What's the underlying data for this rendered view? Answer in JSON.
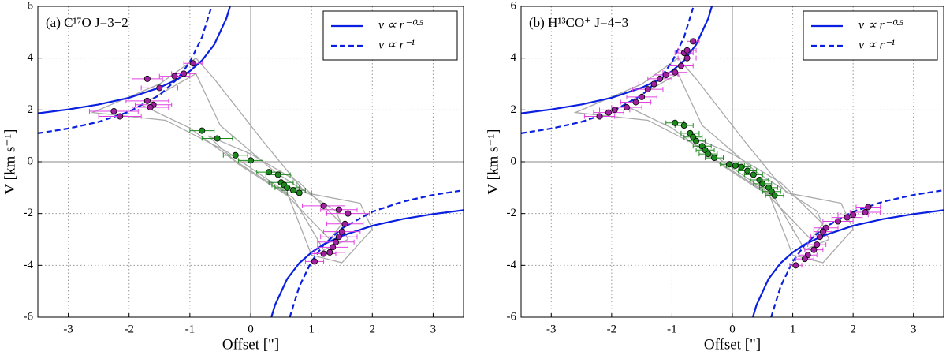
{
  "chart_data": [
    {
      "type": "scatter",
      "title": "(a) C¹⁷O J=3−2",
      "xlabel": "Offset [\"]",
      "ylabel": "V [km s⁻¹]",
      "xlim": [
        -3.5,
        3.5
      ],
      "xticks": [
        -3,
        -2,
        -1,
        0,
        1,
        2,
        3
      ],
      "ylim": [
        -6,
        6
      ],
      "yticks": [
        -6,
        -4,
        -2,
        0,
        2,
        4,
        6
      ],
      "grid": true,
      "legend": "upper right",
      "lines": [
        {
          "name": "v ∝ r⁻⁰·⁵",
          "color": "#0a1fe0",
          "dash": false,
          "x": [
            -3.5,
            -3,
            -2.5,
            -2,
            -1.5,
            -1.2,
            -1,
            -0.8,
            -0.6,
            -0.4,
            -0.34,
            0,
            0.34,
            0.4,
            0.6,
            0.8,
            1,
            1.2,
            1.5,
            2,
            2.5,
            3,
            3.5
          ],
          "values": [
            1.87,
            2.02,
            2.21,
            2.47,
            2.86,
            3.19,
            3.5,
            3.91,
            4.52,
            5.53,
            6.0,
            null,
            -6.0,
            -5.53,
            -4.52,
            -3.91,
            -3.5,
            -3.19,
            -2.86,
            -2.47,
            -2.21,
            -2.02,
            -1.87
          ]
        },
        {
          "name": "v ∝ r⁻¹",
          "color": "#0a1fe0",
          "dash": true,
          "x": [
            -3.5,
            -3,
            -2.5,
            -2,
            -1.5,
            -1.2,
            -1,
            -0.8,
            -0.64,
            0,
            0.64,
            0.8,
            1,
            1.2,
            1.5,
            2,
            2.5,
            3,
            3.5
          ],
          "values": [
            1.1,
            1.28,
            1.54,
            1.93,
            2.57,
            3.21,
            3.85,
            4.81,
            6.02,
            null,
            -6.02,
            -4.81,
            -3.85,
            -3.21,
            -2.57,
            -1.93,
            -1.54,
            -1.28,
            -1.1
          ]
        }
      ],
      "points": [
        {
          "color": "#a020a0",
          "bar_color": "#e040e0",
          "x": [
            -0.95,
            -1.1,
            -1.25,
            -1.5,
            -1.7,
            -1.7,
            -1.6,
            -1.65,
            -2.25,
            -2.15,
            1.2,
            1.45,
            1.6,
            1.55,
            1.5,
            1.45,
            1.4,
            1.35,
            1.3,
            1.2,
            1.05
          ],
          "values": [
            3.8,
            3.4,
            3.3,
            2.85,
            3.2,
            2.35,
            2.2,
            2.1,
            1.95,
            1.75,
            -1.7,
            -1.85,
            -2.0,
            -2.4,
            -2.7,
            -2.9,
            -3.1,
            -3.3,
            -3.5,
            -3.55,
            -3.85
          ],
          "xerr": [
            0.15,
            0.2,
            0.25,
            0.3,
            0.25,
            0.35,
            0.3,
            0.3,
            0.4,
            0.35,
            0.35,
            0.3,
            0.35,
            0.3,
            0.3,
            0.3,
            0.3,
            0.25,
            0.25,
            0.2,
            0.15
          ]
        },
        {
          "color": "#1c8a1c",
          "bar_color": "#1c8a1c",
          "x": [
            -0.8,
            -0.55,
            -0.25,
            0,
            0.3,
            0.45,
            0.5,
            0.55,
            0.6,
            0.7,
            0.8
          ],
          "values": [
            1.2,
            0.9,
            0.25,
            0.05,
            -0.4,
            -0.5,
            -0.8,
            -0.9,
            -1.0,
            -1.1,
            -1.2
          ],
          "xerr": [
            0.2,
            0.25,
            0.2,
            0.2,
            0.2,
            0.2,
            0.2,
            0.2,
            0.2,
            0.2,
            0.2
          ]
        }
      ]
    },
    {
      "type": "scatter",
      "title": "(b) H¹³CO⁺ J=4−3",
      "xlabel": "Offset [\"]",
      "ylabel": "V [km s⁻¹]",
      "xlim": [
        -3.5,
        3.5
      ],
      "xticks": [
        -3,
        -2,
        -1,
        0,
        1,
        2,
        3
      ],
      "ylim": [
        -6,
        6
      ],
      "yticks": [
        -6,
        -4,
        -2,
        0,
        2,
        4,
        6
      ],
      "grid": true,
      "legend": "upper right",
      "lines": [
        {
          "name": "v ∝ r⁻⁰·⁵",
          "color": "#0a1fe0",
          "dash": false,
          "x": [
            -3.5,
            -3,
            -2.5,
            -2,
            -1.5,
            -1.2,
            -1,
            -0.8,
            -0.6,
            -0.4,
            -0.34,
            0,
            0.34,
            0.4,
            0.6,
            0.8,
            1,
            1.2,
            1.5,
            2,
            2.5,
            3,
            3.5
          ],
          "values": [
            1.87,
            2.02,
            2.21,
            2.47,
            2.86,
            3.19,
            3.5,
            3.91,
            4.52,
            5.53,
            6.0,
            null,
            -6.0,
            -5.53,
            -4.52,
            -3.91,
            -3.5,
            -3.19,
            -2.86,
            -2.47,
            -2.21,
            -2.02,
            -1.87
          ]
        },
        {
          "name": "v ∝ r⁻¹",
          "color": "#0a1fe0",
          "dash": true,
          "x": [
            -3.5,
            -3,
            -2.5,
            -2,
            -1.5,
            -1.2,
            -1,
            -0.8,
            -0.64,
            0,
            0.64,
            0.8,
            1,
            1.2,
            1.5,
            2,
            2.5,
            3,
            3.5
          ],
          "values": [
            1.1,
            1.28,
            1.54,
            1.93,
            2.57,
            3.21,
            3.85,
            4.81,
            6.02,
            null,
            -6.02,
            -4.81,
            -3.85,
            -3.21,
            -2.57,
            -1.93,
            -1.54,
            -1.28,
            -1.1
          ]
        }
      ],
      "points": [
        {
          "color": "#a020a0",
          "bar_color": "#e040e0",
          "x": [
            -2.2,
            -2.05,
            -1.95,
            -1.75,
            -1.6,
            -1.5,
            -1.4,
            -1.3,
            -1.2,
            -1.1,
            -0.95,
            -0.85,
            -0.75,
            -0.8,
            -0.75,
            -0.65,
            2.25,
            2.2,
            2.0,
            1.9,
            1.75,
            1.55,
            1.5,
            1.45,
            1.4,
            1.35,
            1.25,
            1.2,
            1.05
          ],
          "values": [
            1.75,
            1.9,
            2.0,
            2.1,
            2.3,
            2.5,
            2.8,
            3.0,
            3.2,
            3.35,
            3.45,
            3.7,
            4.0,
            4.2,
            4.3,
            4.65,
            -1.75,
            -1.95,
            -2.05,
            -2.15,
            -2.3,
            -2.55,
            -2.7,
            -2.9,
            -3.2,
            -3.4,
            -3.6,
            -3.75,
            -4.0
          ],
          "xerr": [
            0.25,
            0.25,
            0.25,
            0.25,
            0.25,
            0.25,
            0.25,
            0.25,
            0.2,
            0.2,
            0.2,
            0.2,
            0.15,
            0.15,
            0.15,
            0.1,
            0.2,
            0.25,
            0.25,
            0.25,
            0.25,
            0.2,
            0.15,
            0.15,
            0.15,
            0.15,
            0.15,
            0.15,
            0.1
          ]
        },
        {
          "color": "#1c8a1c",
          "bar_color": "#1c8a1c",
          "x": [
            -0.95,
            -0.8,
            -0.7,
            -0.65,
            -0.6,
            -0.5,
            -0.45,
            -0.4,
            -0.3,
            -0.05,
            0.05,
            0.15,
            0.25,
            0.35,
            0.45,
            0.5,
            0.6,
            0.65,
            0.7
          ],
          "values": [
            1.5,
            1.4,
            1.1,
            0.95,
            0.8,
            0.6,
            0.45,
            0.3,
            0.15,
            -0.1,
            -0.15,
            -0.2,
            -0.35,
            -0.5,
            -0.7,
            -0.85,
            -1.0,
            -1.15,
            -1.3
          ],
          "xerr": [
            0.15,
            0.15,
            0.15,
            0.15,
            0.15,
            0.15,
            0.15,
            0.15,
            0.15,
            0.15,
            0.15,
            0.15,
            0.15,
            0.15,
            0.15,
            0.15,
            0.15,
            0.15,
            0.15
          ]
        }
      ]
    }
  ]
}
